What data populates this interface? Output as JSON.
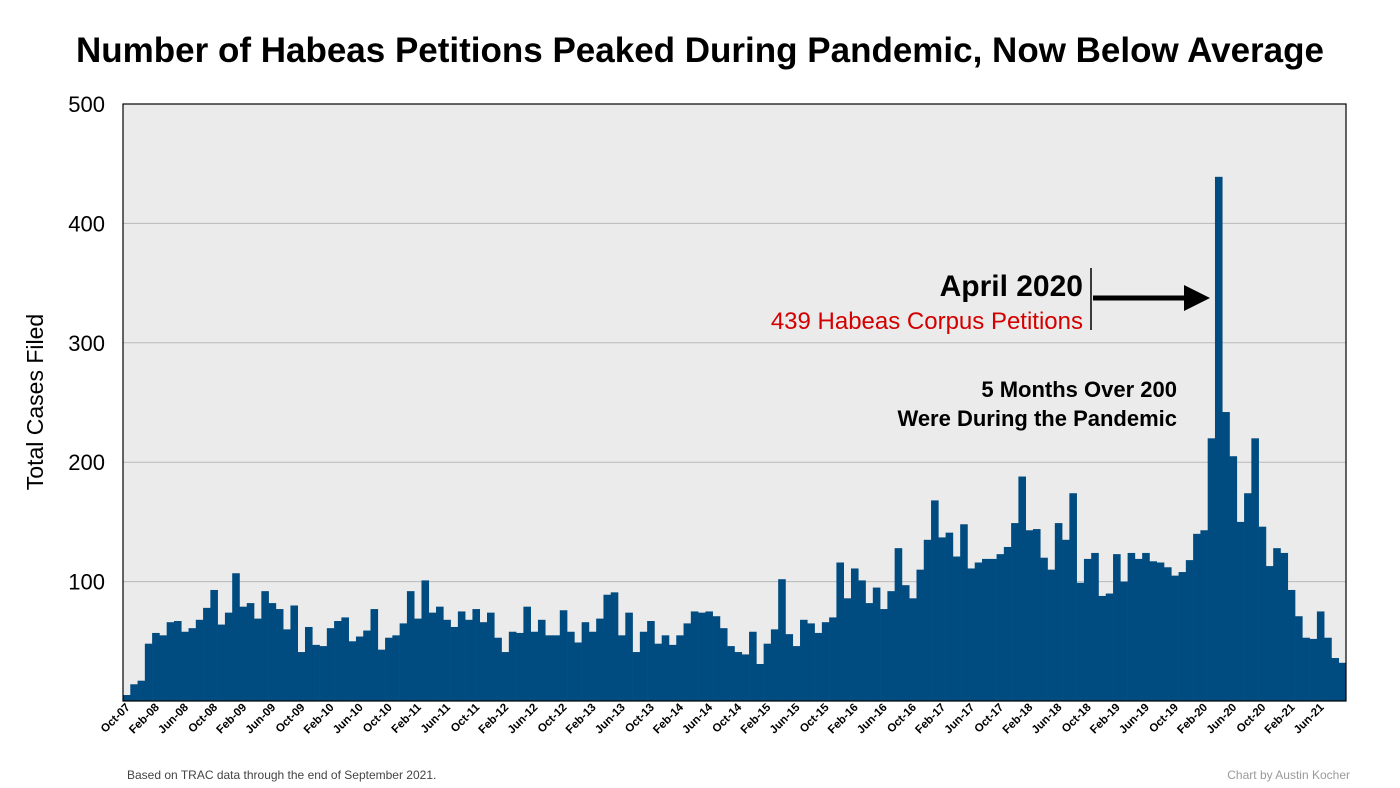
{
  "chart_data": {
    "type": "bar",
    "title": "Number of Habeas Petitions Peaked During Pandemic, Now Below Average",
    "ylabel": "Total Cases Filed",
    "xlabel": "",
    "ylim": [
      0,
      500
    ],
    "yticks": [
      "100",
      "200",
      "300",
      "400",
      "500"
    ],
    "ytick_values": [
      100,
      200,
      300,
      400,
      500
    ],
    "grid": true,
    "start": "Oct-07",
    "x_tick_labels": [
      "Oct-07",
      "Feb-08",
      "Jun-08",
      "Oct-08",
      "Feb-09",
      "Jun-09",
      "Oct-09",
      "Feb-10",
      "Jun-10",
      "Oct-10",
      "Feb-11",
      "Jun-11",
      "Oct-11",
      "Feb-12",
      "Jun-12",
      "Oct-12",
      "Feb-13",
      "Jun-13",
      "Oct-13",
      "Feb-14",
      "Jun-14",
      "Oct-14",
      "Feb-15",
      "Jun-15",
      "Oct-15",
      "Feb-16",
      "Jun-16",
      "Oct-16",
      "Feb-17",
      "Jun-17",
      "Oct-17",
      "Feb-18",
      "Jun-18",
      "Oct-18",
      "Feb-19",
      "Jun-19",
      "Oct-19",
      "Feb-20",
      "Jun-20",
      "Oct-20",
      "Feb-21",
      "Jun-21"
    ],
    "values": [
      5,
      14,
      17,
      48,
      57,
      55,
      66,
      67,
      58,
      61,
      68,
      78,
      93,
      64,
      74,
      107,
      79,
      82,
      69,
      92,
      82,
      77,
      60,
      80,
      41,
      62,
      47,
      46,
      61,
      67,
      70,
      50,
      54,
      59,
      77,
      43,
      53,
      55,
      65,
      92,
      69,
      101,
      74,
      79,
      68,
      62,
      75,
      68,
      77,
      66,
      74,
      53,
      41,
      58,
      57,
      79,
      58,
      68,
      55,
      55,
      76,
      58,
      49,
      66,
      58,
      69,
      89,
      91,
      55,
      74,
      41,
      58,
      67,
      48,
      55,
      47,
      55,
      65,
      75,
      74,
      75,
      71,
      61,
      46,
      41,
      39,
      58,
      31,
      48,
      60,
      102,
      56,
      46,
      68,
      65,
      57,
      66,
      70,
      116,
      86,
      111,
      101,
      82,
      95,
      77,
      92,
      128,
      97,
      86,
      110,
      135,
      168,
      137,
      141,
      121,
      148,
      111,
      116,
      119,
      119,
      123,
      129,
      149,
      188,
      143,
      144,
      120,
      110,
      149,
      135,
      174,
      99,
      119,
      124,
      88,
      90,
      123,
      100,
      124,
      119,
      124,
      117,
      116,
      112,
      105,
      108,
      118,
      140,
      143,
      220,
      439,
      242,
      205,
      150,
      174,
      220,
      146,
      113,
      128,
      124,
      93,
      71,
      53,
      52,
      75,
      53,
      36,
      32
    ],
    "color": "#004b7f",
    "plot_background": "#ebebeb",
    "annotations": {
      "peak_label": "April 2020",
      "peak_value_label": "439 Habeas Corpus Petitions",
      "peak_value_color": "#d40000",
      "note_line1": "5 Months Over 200",
      "note_line2": "Were During the Pandemic"
    }
  },
  "footer": {
    "source": "Based on TRAC data through the end of September 2021.",
    "credit": "Chart by Austin Kocher"
  }
}
